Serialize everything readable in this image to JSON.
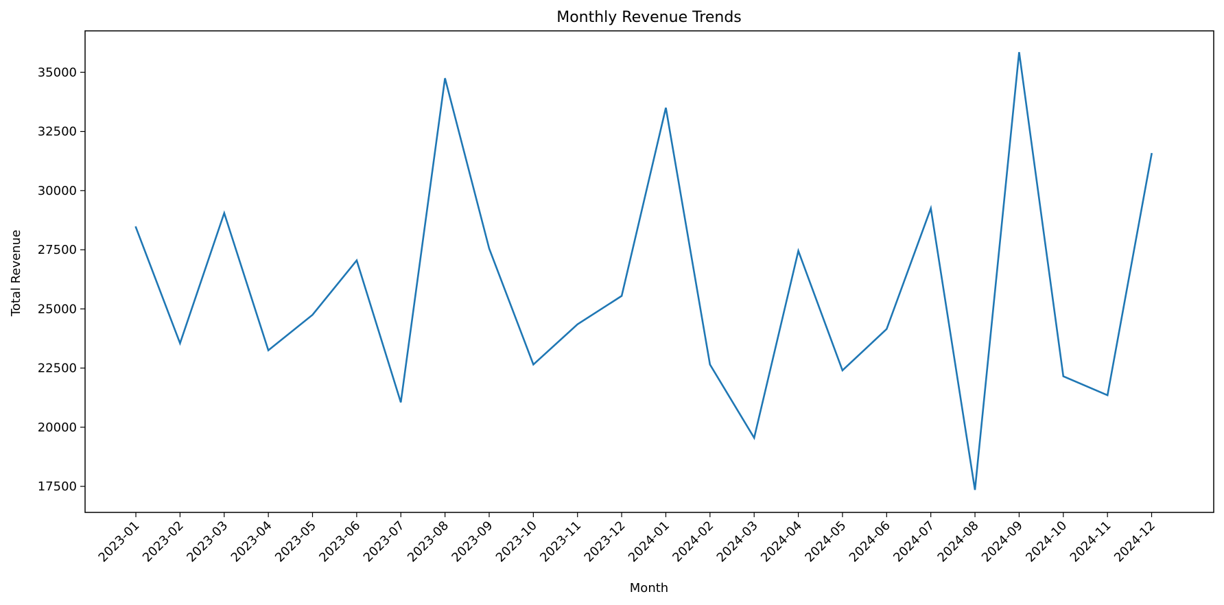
{
  "chart_data": {
    "type": "line",
    "title": "Monthly Revenue Trends",
    "xlabel": "Month",
    "ylabel": "Total Revenue",
    "categories": [
      "2023-01",
      "2023-02",
      "2023-03",
      "2023-04",
      "2023-05",
      "2023-06",
      "2023-07",
      "2023-08",
      "2023-09",
      "2023-10",
      "2023-11",
      "2023-12",
      "2024-01",
      "2024-02",
      "2024-03",
      "2024-04",
      "2024-05",
      "2024-06",
      "2024-07",
      "2024-08",
      "2024-09",
      "2024-10",
      "2024-11",
      "2024-12"
    ],
    "series": [
      {
        "name": "Total Revenue",
        "color": "#1f77b4",
        "values": [
          28450,
          23550,
          29050,
          23250,
          24750,
          27050,
          21050,
          34750,
          27550,
          22650,
          24350,
          25550,
          33500,
          22650,
          19550,
          27450,
          22400,
          24150,
          29250,
          17350,
          35850,
          22150,
          21350,
          31550
        ]
      }
    ],
    "yticks": [
      17500,
      20000,
      22500,
      25000,
      27500,
      30000,
      32500,
      35000
    ],
    "ytick_labels": [
      "17500",
      "20000",
      "22500",
      "25000",
      "27500",
      "30000",
      "32500",
      "35000"
    ],
    "ylim": [
      16400,
      36750
    ],
    "grid": false,
    "legend": "none"
  }
}
